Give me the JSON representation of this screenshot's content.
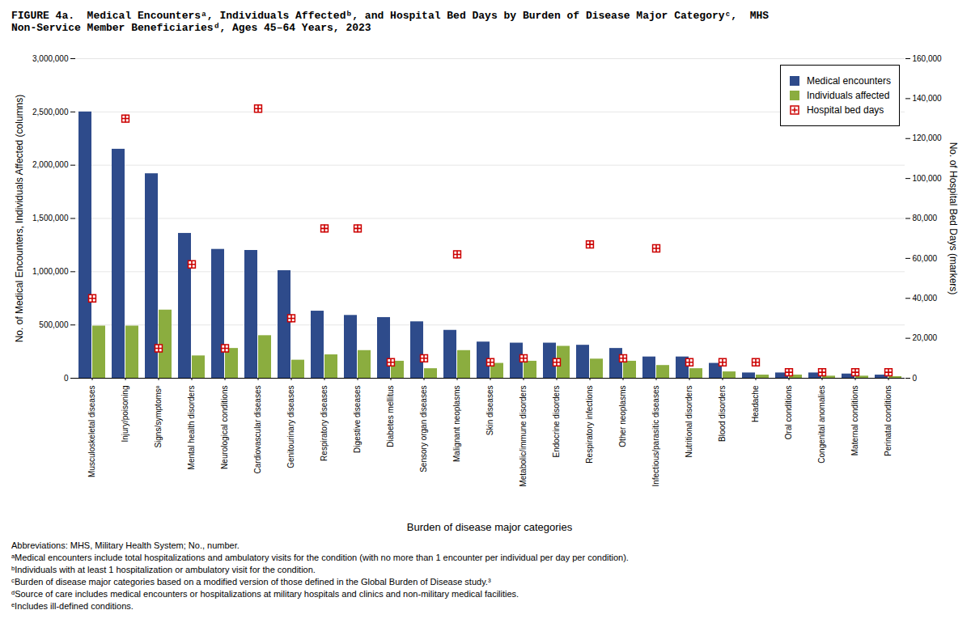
{
  "chart_data": {
    "type": "bar",
    "title": "FIGURE 4a.  Medical Encountersᵃ, Individuals Affectedᵇ, and Hospital Bed Days by Burden of Disease Major Categoryᶜ,  MHS\nNon-Service Member Beneficiariesᵈ, Ages 45–64 Years, 2023",
    "xlabel": "Burden of disease major categories",
    "ylabel": "No. of Medical Encounters, Individuals Affected (columns)",
    "y2label": "No. of Hospital Bed Days (markers)",
    "categories": [
      "Musculoskeletal diseases",
      "Injury/poisoning",
      "Signs/symptomsᵉ",
      "Mental health disorders",
      "Neurological conditions",
      "Cardiovascular diseases",
      "Genitourinary diseases",
      "Respiratory diseases",
      "Digestive diseases",
      "Diabetes mellitus",
      "Sensory organ diseases",
      "Malignant neoplasms",
      "Skin diseases",
      "Metabolic/immune disorders",
      "Endocrine disorders",
      "Respiratory infections",
      "Other neoplasms",
      "Infectious/parasitic diseases",
      "Nutritional disorders",
      "Blood disorders",
      "Headache",
      "Oral conditions",
      "Congenital anomalies",
      "Maternal conditions",
      "Perinatal conditions"
    ],
    "series": [
      {
        "name": "Medical encounters",
        "color": "#2E4B8B",
        "type": "bar",
        "values": [
          2500000,
          2150000,
          1920000,
          1360000,
          1210000,
          1200000,
          1010000,
          630000,
          590000,
          570000,
          530000,
          450000,
          340000,
          330000,
          330000,
          310000,
          280000,
          200000,
          200000,
          140000,
          50000,
          50000,
          50000,
          40000,
          30000
        ]
      },
      {
        "name": "Individuals affected",
        "color": "#8BAD3F",
        "type": "bar",
        "values": [
          490000,
          490000,
          640000,
          210000,
          280000,
          400000,
          170000,
          220000,
          260000,
          160000,
          90000,
          260000,
          140000,
          160000,
          300000,
          180000,
          160000,
          120000,
          90000,
          60000,
          30000,
          30000,
          20000,
          20000,
          15000
        ]
      },
      {
        "name": "Hospital bed days",
        "color": "#CC0000",
        "type": "scatter",
        "marker": "square",
        "axis": "y2",
        "values": [
          40000,
          130000,
          15000,
          57000,
          15000,
          135000,
          30000,
          75000,
          75000,
          8000,
          10000,
          62000,
          8000,
          10000,
          8000,
          67000,
          10000,
          65000,
          8000,
          8000,
          8000,
          3000,
          3000,
          3000,
          3000
        ]
      }
    ],
    "ylim": [
      0,
      3000000
    ],
    "yticks": [
      0,
      {
        "value": 500000,
        "label": "500,000"
      },
      {
        "value": 1000000,
        "label": "1,000,000"
      },
      {
        "value": 1500000,
        "label": "1,500,000"
      },
      {
        "value": 2000000,
        "label": "2,000,000"
      },
      {
        "value": 2500000,
        "label": "2,500,000"
      },
      {
        "value": 3000000,
        "label": "3,000,000"
      }
    ],
    "y2lim": [
      0,
      160000
    ],
    "y2ticks": [
      0,
      {
        "value": 20000,
        "label": "20,000"
      },
      {
        "value": 40000,
        "label": "40,000"
      },
      {
        "value": 60000,
        "label": "60,000"
      },
      {
        "value": 80000,
        "label": "80,000"
      },
      {
        "value": 100000,
        "label": "100,000"
      },
      {
        "value": 120000,
        "label": "120,000"
      },
      {
        "value": 140000,
        "label": "140,000"
      },
      {
        "value": 160000,
        "label": "160,000"
      }
    ],
    "grid": true,
    "legend": "upper right",
    "annotations": [
      "Abbreviations: MHS, Military Health System; No., number.",
      "ᵃMedical encounters include total hospitalizations and ambulatory visits for the condition (with no more than 1 encounter per individual per day per condition).",
      "ᵇIndividuals with at least 1 hospitalization or ambulatory visit for the condition.",
      "ᶜBurden of disease major categories based on a modified version of those defined in the Global Burden of Disease study.³",
      "ᵈSource of care includes medical encounters or hospitalizations at military hospitals and clinics and non-military medical facilities.",
      "ᵉIncludes ill-defined conditions."
    ]
  }
}
